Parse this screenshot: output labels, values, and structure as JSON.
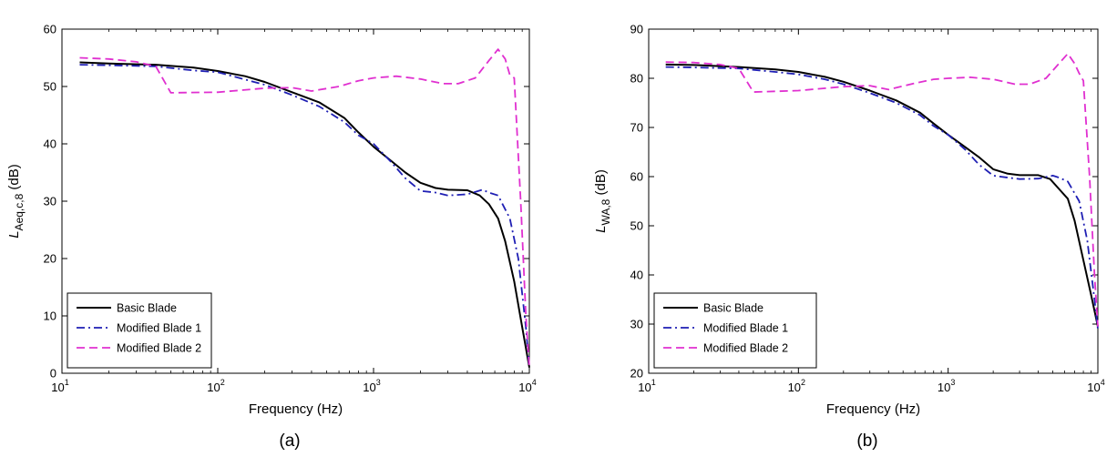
{
  "chart_data": [
    {
      "type": "line",
      "caption": "(a)",
      "xlabel": "Frequency (Hz)",
      "ylabel": {
        "main": "L",
        "subscript": "Aeq,c,8",
        "unit": " (dB)"
      },
      "xscale": "log",
      "xlim": [
        10,
        10000
      ],
      "ylim": [
        0,
        60
      ],
      "xticks": [
        {
          "base": "10",
          "exp": "1",
          "value": 10
        },
        {
          "base": "10",
          "exp": "2",
          "value": 100
        },
        {
          "base": "10",
          "exp": "3",
          "value": 1000
        },
        {
          "base": "10",
          "exp": "4",
          "value": 10000
        }
      ],
      "yticks": [
        "0",
        "10",
        "20",
        "30",
        "40",
        "50",
        "60"
      ],
      "grid": false,
      "legend_position": "bottom-left",
      "series": [
        {
          "name": "Basic Blade",
          "color": "#000000",
          "style": "solid",
          "points": [
            [
              13,
              54.2
            ],
            [
              20,
              54.0
            ],
            [
              40,
              53.8
            ],
            [
              70,
              53.3
            ],
            [
              100,
              52.7
            ],
            [
              150,
              51.8
            ],
            [
              200,
              50.8
            ],
            [
              300,
              49.0
            ],
            [
              450,
              47.2
            ],
            [
              650,
              44.5
            ],
            [
              800,
              42.0
            ],
            [
              1000,
              39.5
            ],
            [
              1300,
              37.0
            ],
            [
              1600,
              35.0
            ],
            [
              2000,
              33.2
            ],
            [
              2500,
              32.3
            ],
            [
              3000,
              32.0
            ],
            [
              4000,
              31.9
            ],
            [
              4800,
              31.0
            ],
            [
              5500,
              29.5
            ],
            [
              6300,
              27.0
            ],
            [
              7000,
              23.0
            ],
            [
              8000,
              16.0
            ],
            [
              9000,
              8.0
            ],
            [
              10000,
              1.0
            ]
          ]
        },
        {
          "name": "Modified Blade 1",
          "color": "#1f1fb4",
          "style": "dashdot",
          "points": [
            [
              13,
              53.8
            ],
            [
              20,
              53.7
            ],
            [
              40,
              53.5
            ],
            [
              70,
              52.8
            ],
            [
              100,
              52.5
            ],
            [
              150,
              51.2
            ],
            [
              200,
              50.3
            ],
            [
              300,
              48.5
            ],
            [
              450,
              46.5
            ],
            [
              650,
              43.8
            ],
            [
              800,
              41.5
            ],
            [
              1000,
              40.0
            ],
            [
              1300,
              36.8
            ],
            [
              1600,
              34.0
            ],
            [
              2000,
              31.8
            ],
            [
              2500,
              31.5
            ],
            [
              3000,
              31.0
            ],
            [
              4000,
              31.2
            ],
            [
              5000,
              32.0
            ],
            [
              5500,
              31.5
            ],
            [
              6300,
              31.0
            ],
            [
              7500,
              27.0
            ],
            [
              8500,
              20.0
            ],
            [
              9500,
              8.0
            ],
            [
              10000,
              1.0
            ]
          ]
        },
        {
          "name": "Modified Blade 2",
          "color": "#e030d0",
          "style": "dashed",
          "points": [
            [
              13,
              55.0
            ],
            [
              20,
              54.8
            ],
            [
              30,
              54.3
            ],
            [
              40,
              53.5
            ],
            [
              50,
              48.9
            ],
            [
              100,
              49.0
            ],
            [
              200,
              49.7
            ],
            [
              300,
              49.8
            ],
            [
              400,
              49.2
            ],
            [
              600,
              50.0
            ],
            [
              800,
              51.0
            ],
            [
              1000,
              51.5
            ],
            [
              1400,
              51.8
            ],
            [
              2000,
              51.3
            ],
            [
              2800,
              50.5
            ],
            [
              3500,
              50.5
            ],
            [
              4500,
              51.5
            ],
            [
              5500,
              54.5
            ],
            [
              6300,
              56.5
            ],
            [
              7000,
              54.8
            ],
            [
              7500,
              52.0
            ],
            [
              8000,
              51.5
            ],
            [
              8800,
              30.0
            ],
            [
              9500,
              10.0
            ],
            [
              10000,
              1.0
            ]
          ]
        }
      ]
    },
    {
      "type": "line",
      "caption": "(b)",
      "xlabel": "Frequency (Hz)",
      "ylabel": {
        "main": "L",
        "subscript": "WA,8",
        "unit": " (dB)"
      },
      "xscale": "log",
      "xlim": [
        10,
        10000
      ],
      "ylim": [
        20,
        90
      ],
      "xticks": [
        {
          "base": "10",
          "exp": "1",
          "value": 10
        },
        {
          "base": "10",
          "exp": "2",
          "value": 100
        },
        {
          "base": "10",
          "exp": "3",
          "value": 1000
        },
        {
          "base": "10",
          "exp": "4",
          "value": 10000
        }
      ],
      "yticks": [
        "20",
        "30",
        "40",
        "50",
        "60",
        "70",
        "80",
        "90"
      ],
      "grid": false,
      "legend_position": "bottom-left",
      "series": [
        {
          "name": "Basic Blade",
          "color": "#000000",
          "style": "solid",
          "points": [
            [
              13,
              82.8
            ],
            [
              20,
              82.7
            ],
            [
              40,
              82.3
            ],
            [
              70,
              81.8
            ],
            [
              100,
              81.3
            ],
            [
              150,
              80.3
            ],
            [
              200,
              79.3
            ],
            [
              300,
              77.5
            ],
            [
              450,
              75.5
            ],
            [
              650,
              73.0
            ],
            [
              800,
              70.8
            ],
            [
              1000,
              68.5
            ],
            [
              1300,
              66.0
            ],
            [
              1600,
              64.0
            ],
            [
              2000,
              61.5
            ],
            [
              2500,
              60.6
            ],
            [
              3000,
              60.3
            ],
            [
              4000,
              60.3
            ],
            [
              4800,
              59.5
            ],
            [
              5500,
              57.5
            ],
            [
              6300,
              55.5
            ],
            [
              7000,
              51.0
            ],
            [
              8000,
              43.0
            ],
            [
              9000,
              36.0
            ],
            [
              10000,
              29.5
            ]
          ]
        },
        {
          "name": "Modified Blade 1",
          "color": "#1f1fb4",
          "style": "dashdot",
          "points": [
            [
              13,
              82.3
            ],
            [
              20,
              82.2
            ],
            [
              40,
              82.0
            ],
            [
              70,
              81.3
            ],
            [
              100,
              80.8
            ],
            [
              150,
              79.8
            ],
            [
              200,
              78.8
            ],
            [
              300,
              77.0
            ],
            [
              450,
              75.0
            ],
            [
              650,
              72.5
            ],
            [
              800,
              70.3
            ],
            [
              1000,
              68.5
            ],
            [
              1300,
              65.5
            ],
            [
              1600,
              62.5
            ],
            [
              2000,
              60.2
            ],
            [
              2500,
              59.8
            ],
            [
              3000,
              59.5
            ],
            [
              4000,
              59.6
            ],
            [
              5000,
              60.2
            ],
            [
              5500,
              59.8
            ],
            [
              6300,
              59.0
            ],
            [
              7500,
              55.0
            ],
            [
              8500,
              47.0
            ],
            [
              9500,
              35.0
            ],
            [
              10000,
              29.0
            ]
          ]
        },
        {
          "name": "Modified Blade 2",
          "color": "#e030d0",
          "style": "dashed",
          "points": [
            [
              13,
              83.3
            ],
            [
              20,
              83.2
            ],
            [
              30,
              82.8
            ],
            [
              40,
              82.0
            ],
            [
              50,
              77.2
            ],
            [
              100,
              77.5
            ],
            [
              200,
              78.3
            ],
            [
              300,
              78.5
            ],
            [
              400,
              77.7
            ],
            [
              600,
              79.0
            ],
            [
              800,
              79.8
            ],
            [
              1000,
              80.0
            ],
            [
              1400,
              80.2
            ],
            [
              2000,
              79.8
            ],
            [
              2800,
              78.8
            ],
            [
              3500,
              78.8
            ],
            [
              4500,
              80.0
            ],
            [
              5500,
              83.0
            ],
            [
              6300,
              85.0
            ],
            [
              7000,
              83.0
            ],
            [
              7500,
              81.0
            ],
            [
              8000,
              79.5
            ],
            [
              8800,
              60.0
            ],
            [
              9500,
              40.0
            ],
            [
              10000,
              29.5
            ]
          ]
        }
      ]
    }
  ]
}
